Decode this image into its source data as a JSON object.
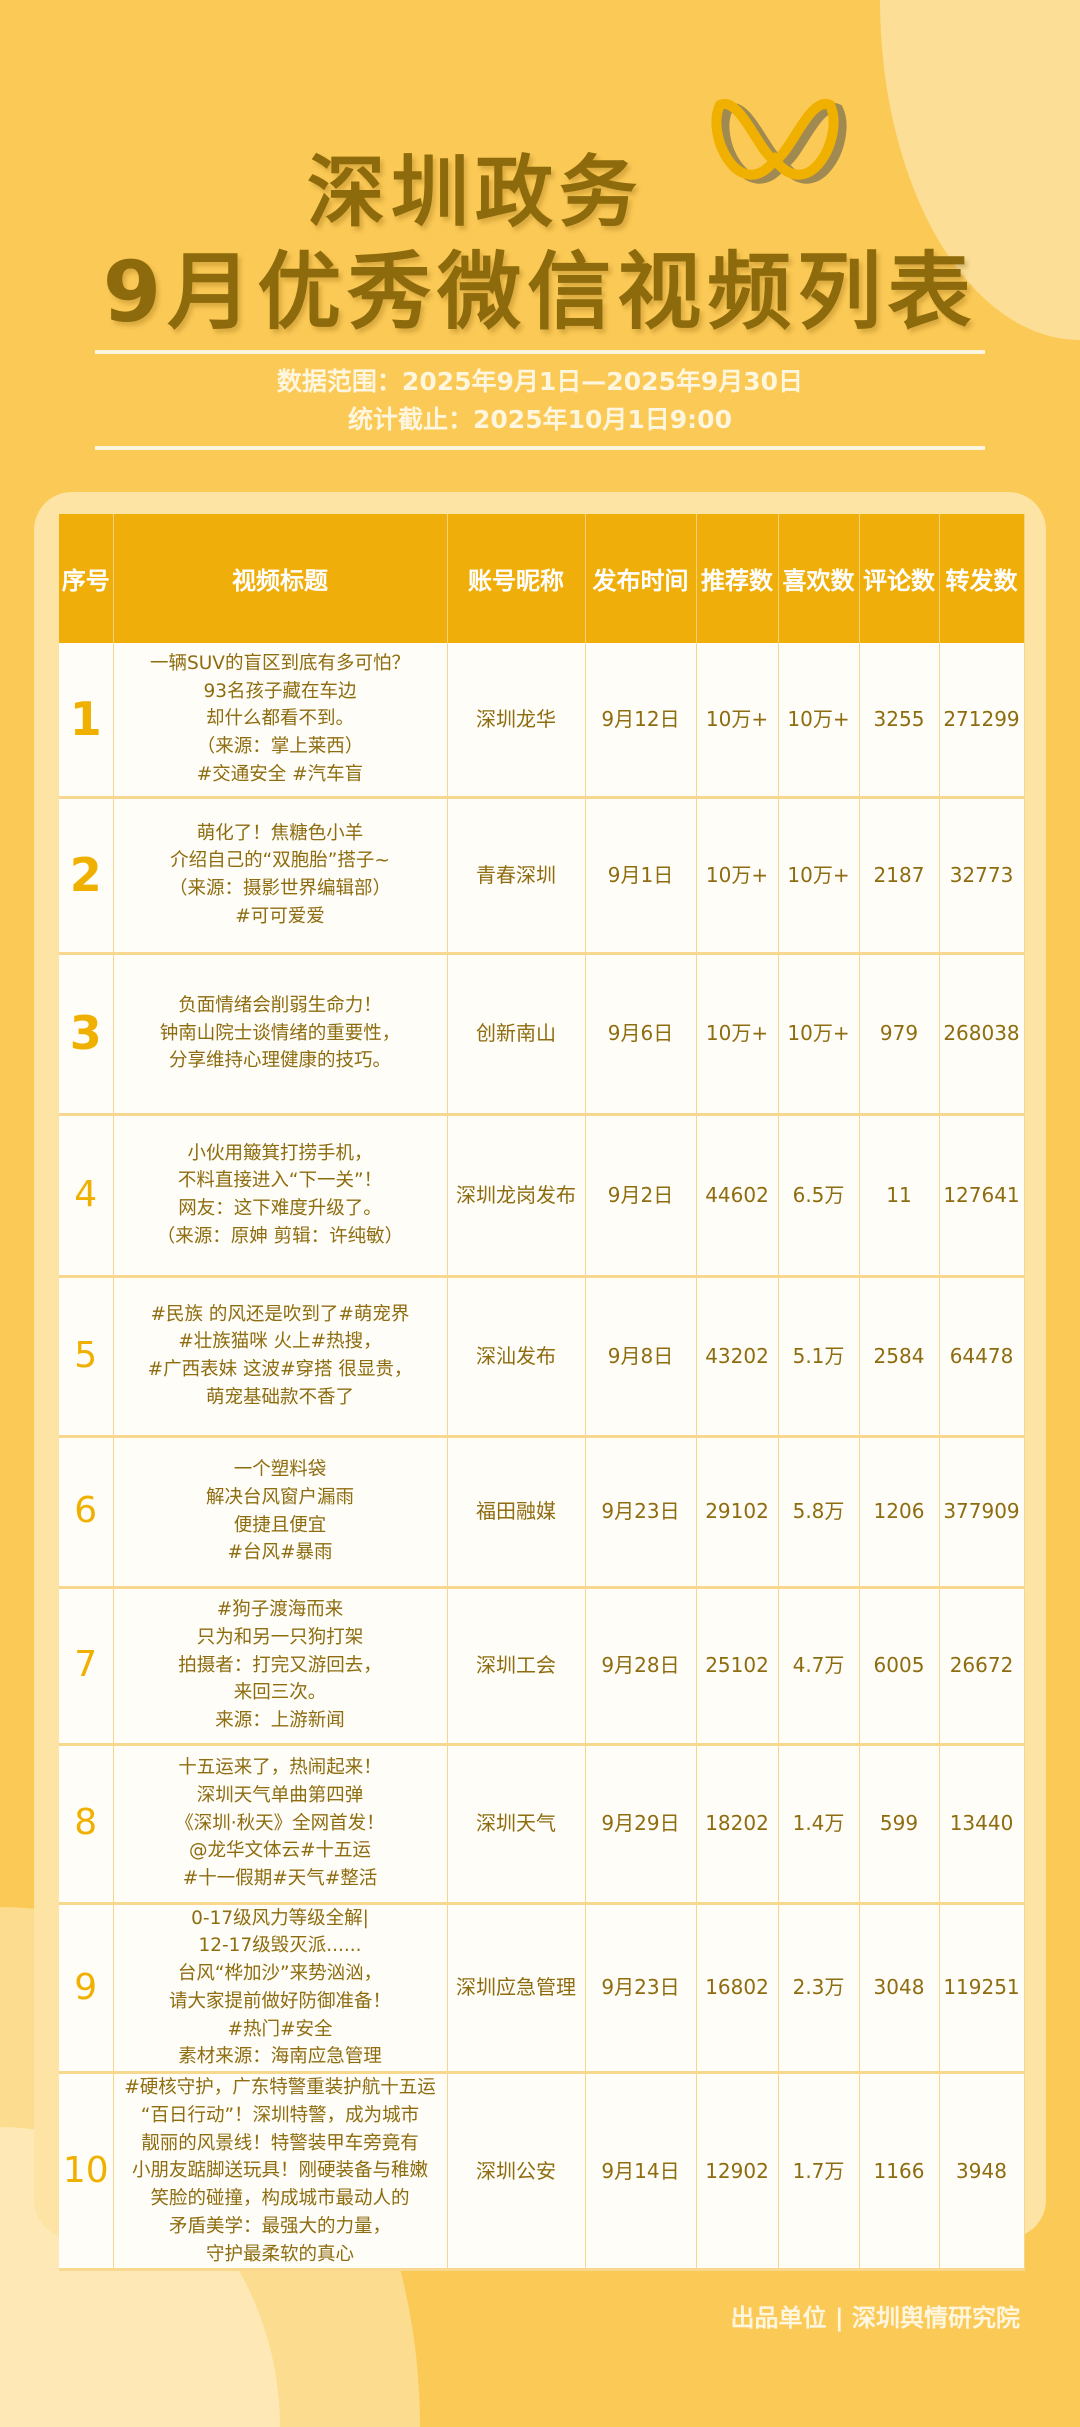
{
  "header": {
    "title_line1": "深圳政务",
    "title_line2": "9月优秀微信视频列表",
    "data_range": "数据范围：2025年9月1日—2025年9月30日",
    "cutoff": "统计截止：2025年10月1日9:00"
  },
  "colors": {
    "background": "#fbc955",
    "header": "#f0ae0b",
    "text": "#8e6c10",
    "rank": "#f0b000"
  },
  "table": {
    "columns": [
      "序号",
      "视频标题",
      "账号昵称",
      "发布时间",
      "推荐数",
      "喜欢数",
      "评论数",
      "转发数"
    ],
    "rows": [
      {
        "rank": "1",
        "title": "一辆SUV的盲区到底有多可怕？\n93名孩子藏在车边\n却什么都看不到。\n（来源：掌上莱西）\n#交通安全 #汽车盲",
        "account": "深圳龙华",
        "date": "9月12日",
        "recommend": "10万+",
        "likes": "10万+",
        "comments": "3255",
        "shares": "271299"
      },
      {
        "rank": "2",
        "title": "萌化了！焦糖色小羊\n介绍自己的“双胞胎”搭子~\n（来源：摄影世界编辑部）\n#可可爱爱",
        "account": "青春深圳",
        "date": "9月1日",
        "recommend": "10万+",
        "likes": "10万+",
        "comments": "2187",
        "shares": "32773"
      },
      {
        "rank": "3",
        "title": "负面情绪会削弱生命力！\n钟南山院士谈情绪的重要性，\n分享维持心理健康的技巧。",
        "account": "创新南山",
        "date": "9月6日",
        "recommend": "10万+",
        "likes": "10万+",
        "comments": "979",
        "shares": "268038"
      },
      {
        "rank": "4",
        "title": "小伙用簸箕打捞手机，\n不料直接进入“下一关”！\n网友：这下难度升级了。\n（来源：原妽 剪辑：许纯敏）",
        "account": "深圳龙岗发布",
        "date": "9月2日",
        "recommend": "44602",
        "likes": "6.5万",
        "comments": "11",
        "shares": "127641"
      },
      {
        "rank": "5",
        "title": "#民族 的风还是吹到了#萌宠界\n#壮族猫咪 火上#热搜，\n#广西表妹 这波#穿搭 很显贵，\n萌宠基础款不香了",
        "account": "深汕发布",
        "date": "9月8日",
        "recommend": "43202",
        "likes": "5.1万",
        "comments": "2584",
        "shares": "64478"
      },
      {
        "rank": "6",
        "title": "一个塑料袋\n解决台风窗户漏雨\n便捷且便宜\n#台风#暴雨",
        "account": "福田融媒",
        "date": "9月23日",
        "recommend": "29102",
        "likes": "5.8万",
        "comments": "1206",
        "shares": "377909"
      },
      {
        "rank": "7",
        "title": "#狗子渡海而来\n只为和另一只狗打架\n拍摄者：打完又游回去，\n来回三次。\n来源：上游新闻",
        "account": "深圳工会",
        "date": "9月28日",
        "recommend": "25102",
        "likes": "4.7万",
        "comments": "6005",
        "shares": "26672"
      },
      {
        "rank": "8",
        "title": "十五运来了，热闹起来！\n深圳天气单曲第四弹\n《深圳·秋天》全网首发！\n@龙华文体云#十五运\n#十一假期#天气#整活",
        "account": "深圳天气",
        "date": "9月29日",
        "recommend": "18202",
        "likes": "1.4万",
        "comments": "599",
        "shares": "13440"
      },
      {
        "rank": "9",
        "title": "0-17级风力等级全解|\n12-17级毁灭派......\n台风“桦加沙”来势汹汹，\n请大家提前做好防御准备！\n#热门#安全\n素材来源：海南应急管理",
        "account": "深圳应急管理",
        "date": "9月23日",
        "recommend": "16802",
        "likes": "2.3万",
        "comments": "3048",
        "shares": "119251"
      },
      {
        "rank": "10",
        "title": "#硬核守护，广东特警重装护航十五运\n“百日行动”！深圳特警，成为城市\n靓丽的风景线！特警装甲车旁竟有\n小朋友踮脚送玩具！刚硬装备与稚嫩\n笑脸的碰撞，构成城市最动人的\n矛盾美学：最强大的力量，\n守护最柔软的真心",
        "account": "深圳公安",
        "date": "9月14日",
        "recommend": "12902",
        "likes": "1.7万",
        "comments": "1166",
        "shares": "3948"
      }
    ]
  },
  "footer": {
    "producer": "出品单位 | 深圳舆情研究院"
  }
}
